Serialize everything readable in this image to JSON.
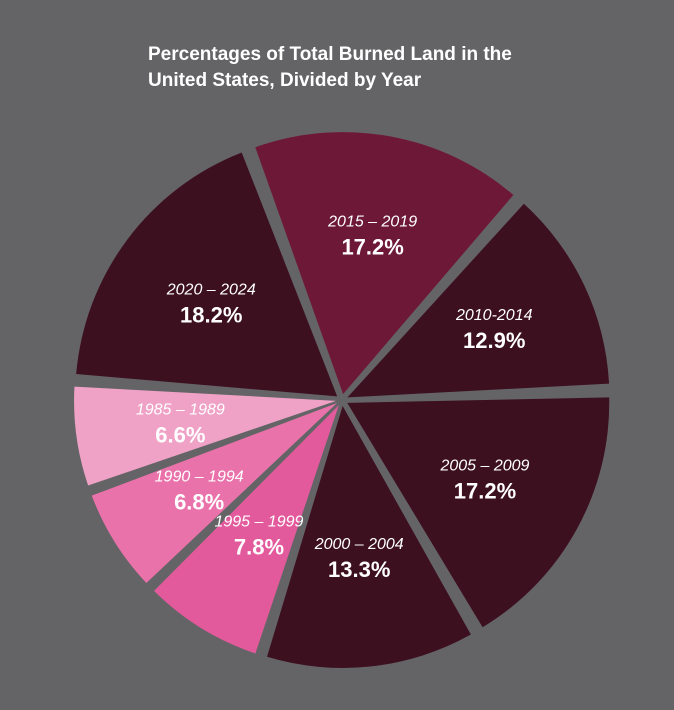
{
  "chart_data": {
    "type": "pie",
    "title_lines": [
      "Percentages of Total Burned Land in the",
      "United States, Divided by Year"
    ],
    "slices": [
      {
        "label": "2020 – 2024",
        "value": 18.2,
        "value_label": "18.2%",
        "color": "#3d1020"
      },
      {
        "label": "2015 – 2019",
        "value": 17.2,
        "value_label": "17.2%",
        "color": "#6e1838"
      },
      {
        "label": "2010-2014",
        "value": 12.9,
        "value_label": "12.9%",
        "color": "#3d1020"
      },
      {
        "label": "2005 – 2009",
        "value": 17.2,
        "value_label": "17.2%",
        "color": "#3d1020"
      },
      {
        "label": "2000 – 2004",
        "value": 13.3,
        "value_label": "13.3%",
        "color": "#3d1020"
      },
      {
        "label": "1995 – 1999",
        "value": 7.8,
        "value_label": "7.8%",
        "color": "#e25a9c"
      },
      {
        "label": "1990 – 1994",
        "value": 6.8,
        "value_label": "6.8%",
        "color": "#ea72ab"
      },
      {
        "label": "1985 – 1989",
        "value": 6.6,
        "value_label": "6.6%",
        "color": "#efa1c6"
      }
    ],
    "legend": "none",
    "labels": "inside-slices"
  },
  "colors": {
    "background": "#646466",
    "text": "#ffffff"
  }
}
